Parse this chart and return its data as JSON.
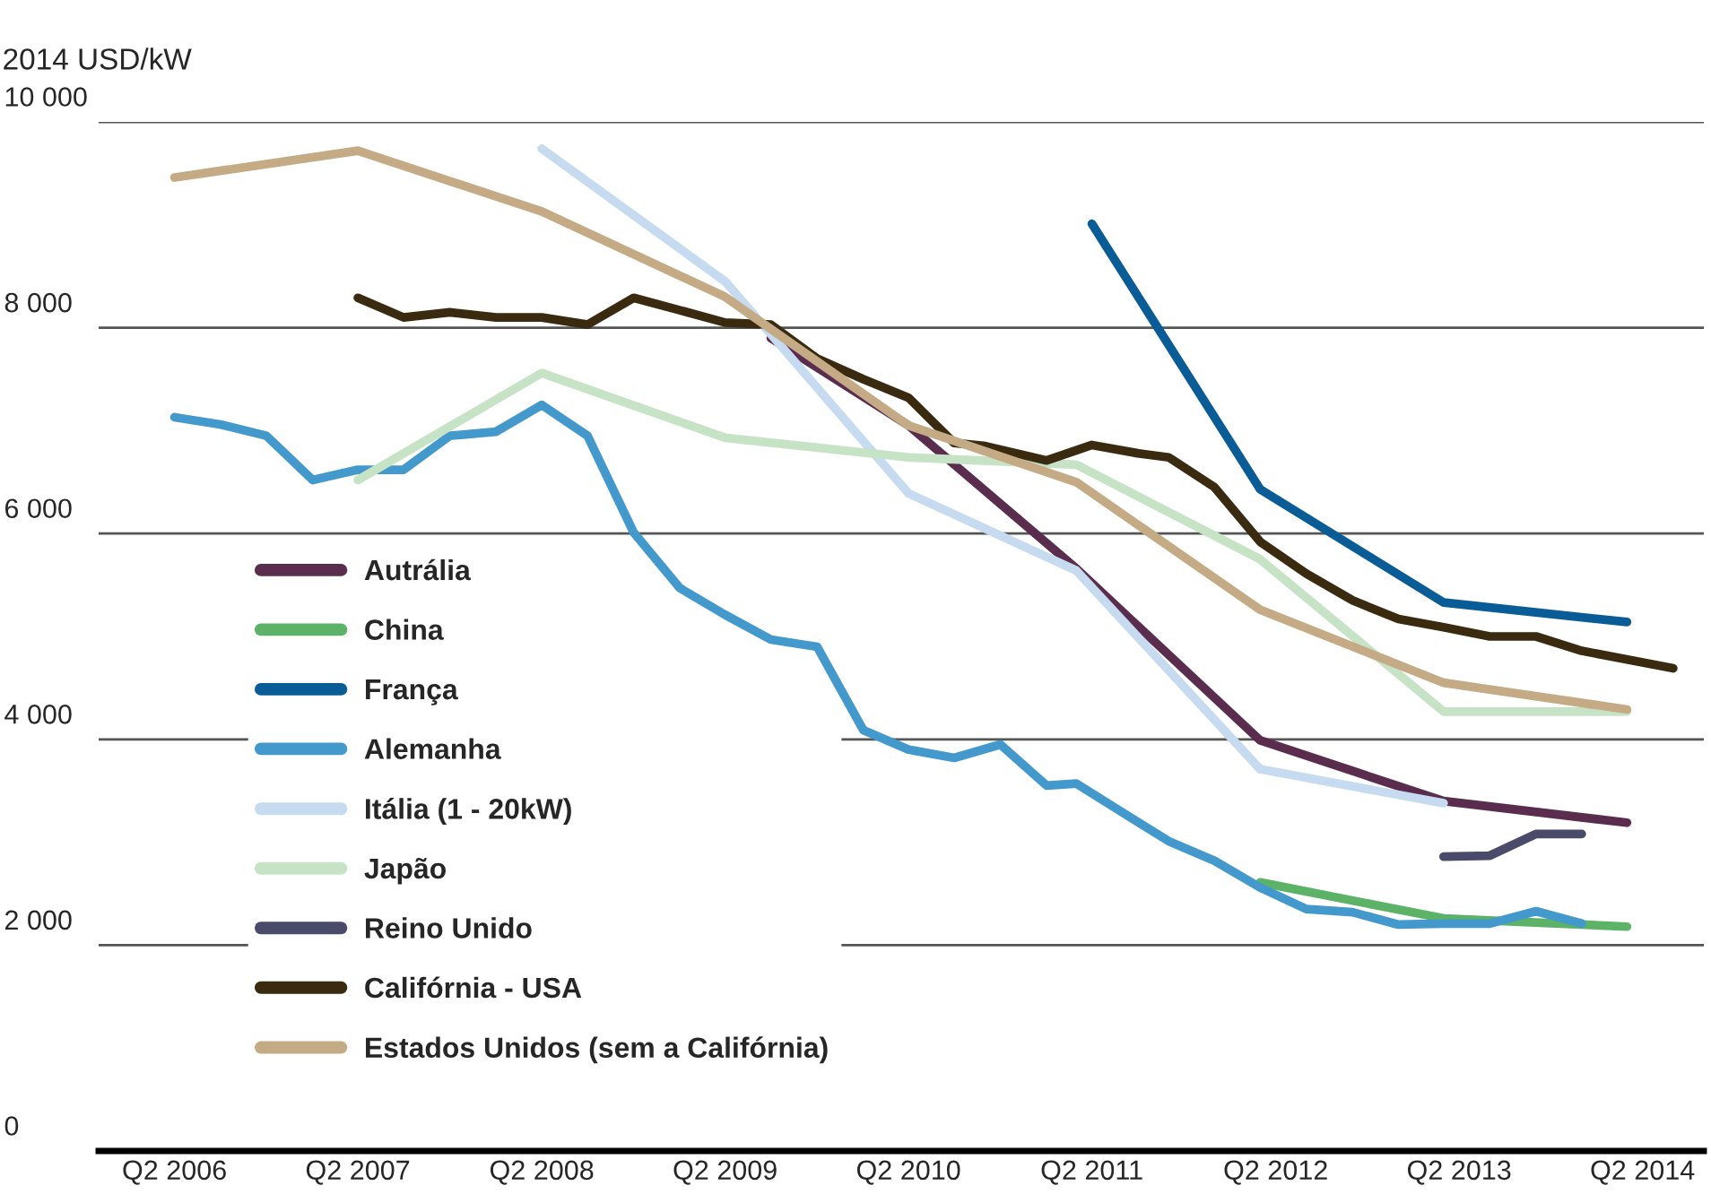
{
  "chart_data": {
    "type": "line",
    "ylabel": "2014 USD/kW",
    "xlim": [
      "2005-11",
      "2014-08"
    ],
    "ylim": [
      0,
      10000
    ],
    "xticks": [
      {
        "value": "2006-04",
        "label": "Q2 2006"
      },
      {
        "value": "2007-04",
        "label": "Q2 2007"
      },
      {
        "value": "2008-04",
        "label": "Q2 2008"
      },
      {
        "value": "2009-04",
        "label": "Q2 2009"
      },
      {
        "value": "2010-04",
        "label": "Q2 2010"
      },
      {
        "value": "2011-04",
        "label": "Q2 2011"
      },
      {
        "value": "2012-04",
        "label": "Q2 2012"
      },
      {
        "value": "2013-04",
        "label": "Q2 2013"
      },
      {
        "value": "2014-04",
        "label": "Q2 2014"
      }
    ],
    "yticks": [
      0,
      {
        "value": 2000,
        "label": "2 000"
      },
      {
        "value": 4000,
        "label": "4 000"
      },
      {
        "value": 6000,
        "label": "6 000"
      },
      {
        "value": 8000,
        "label": "8 000"
      },
      {
        "value": 10000,
        "label": "10 000"
      }
    ],
    "grid": "y",
    "legend": "bottom left",
    "marker": "none",
    "line_style": "solid",
    "series": [
      {
        "name": "Autrália",
        "color": "#5a2d4e",
        "x": [
          "2009-07",
          "2010-04",
          "2011-03",
          "2012-03",
          "2013-03",
          "2014-03"
        ],
        "values": [
          7900,
          7050,
          5660,
          3990,
          3400,
          3190
        ]
      },
      {
        "name": "China",
        "color": "#5cb368",
        "x": [
          "2012-03",
          "2013-03",
          "2014-03"
        ],
        "values": [
          2610,
          2260,
          2180
        ]
      },
      {
        "name": "França",
        "color": "#0a5c96",
        "x": [
          "2011-04",
          "2012-03",
          "2013-03",
          "2014-03"
        ],
        "values": [
          9010,
          6430,
          5330,
          5140
        ]
      },
      {
        "name": "Alemanha",
        "color": "#4499cc",
        "x": [
          "2006-04",
          "2006-07",
          "2006-10",
          "2007-01",
          "2007-04",
          "2007-07",
          "2007-10",
          "2008-01",
          "2008-04",
          "2008-07",
          "2008-10",
          "2009-01",
          "2009-04",
          "2009-07",
          "2009-10",
          "2010-01",
          "2010-04",
          "2010-07",
          "2010-10",
          "2011-01",
          "2011-03",
          "2011-06",
          "2011-09",
          "2011-12",
          "2012-03",
          "2012-06",
          "2012-09",
          "2012-12",
          "2013-03",
          "2013-06",
          "2013-09",
          "2013-12"
        ],
        "values": [
          7130,
          7060,
          6950,
          6520,
          6620,
          6620,
          6950,
          6990,
          7250,
          6950,
          6010,
          5470,
          5210,
          4970,
          4900,
          4090,
          3900,
          3820,
          3950,
          3550,
          3570,
          3290,
          3010,
          2820,
          2560,
          2350,
          2320,
          2200,
          2210,
          2210,
          2330,
          2210
        ]
      },
      {
        "name": "Itália (1 - 20kW)",
        "color": "#c6dbef",
        "x": [
          "2008-04",
          "2009-04",
          "2010-04",
          "2011-03",
          "2012-03",
          "2013-03"
        ],
        "values": [
          9740,
          8450,
          6390,
          5640,
          3710,
          3380
        ]
      },
      {
        "name": "Japão",
        "color": "#c6e3c6",
        "x": [
          "2007-04",
          "2008-04",
          "2009-04",
          "2010-04",
          "2011-03",
          "2012-03",
          "2013-03",
          "2014-03"
        ],
        "values": [
          6520,
          7560,
          6930,
          6740,
          6670,
          5750,
          4270,
          4270
        ]
      },
      {
        "name": "Reino Unido",
        "color": "#4a4a6a",
        "x": [
          "2013-03",
          "2013-06",
          "2013-09",
          "2013-12"
        ],
        "values": [
          2860,
          2870,
          3080,
          3080
        ]
      },
      {
        "name": "Califórnia - USA",
        "color": "#3a2a10",
        "x": [
          "2007-04",
          "2007-07",
          "2007-10",
          "2008-01",
          "2008-04",
          "2008-07",
          "2008-10",
          "2009-01",
          "2009-04",
          "2009-07",
          "2009-10",
          "2010-01",
          "2010-04",
          "2010-07",
          "2010-09",
          "2011-01",
          "2011-04",
          "2011-07",
          "2011-09",
          "2011-12",
          "2012-03",
          "2012-06",
          "2012-09",
          "2012-12",
          "2013-03",
          "2013-06",
          "2013-09",
          "2013-12",
          "2014-06"
        ],
        "values": [
          8290,
          8100,
          8150,
          8100,
          8100,
          8030,
          8290,
          8170,
          8050,
          8030,
          7700,
          7500,
          7320,
          6880,
          6850,
          6710,
          6860,
          6780,
          6740,
          6450,
          5920,
          5610,
          5350,
          5170,
          5090,
          5000,
          5000,
          4860,
          4690
        ]
      },
      {
        "name": "Estados Unidos (sem a Califórnia)",
        "color": "#c4ab85",
        "x": [
          "2006-04",
          "2007-04",
          "2008-04",
          "2009-04",
          "2010-04",
          "2011-03",
          "2012-03",
          "2013-03",
          "2014-03"
        ],
        "values": [
          9460,
          9720,
          9130,
          8300,
          7050,
          6500,
          5260,
          4550,
          4290
        ]
      }
    ]
  }
}
